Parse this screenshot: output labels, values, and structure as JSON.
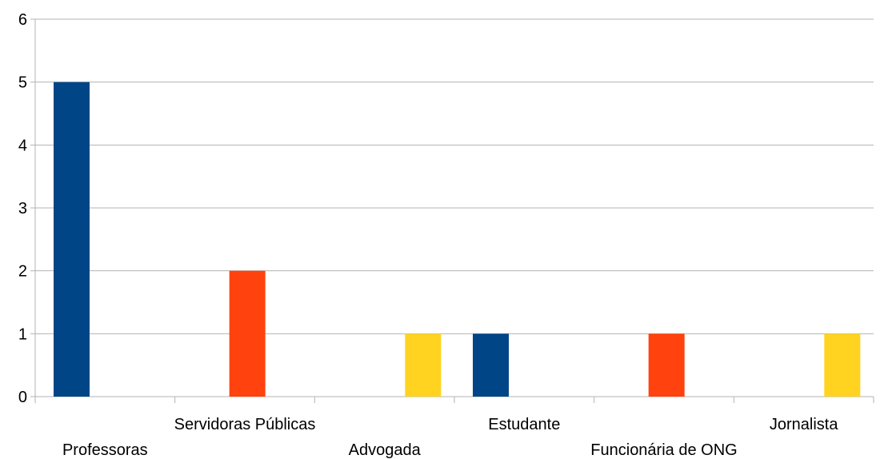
{
  "chart_data": {
    "type": "bar",
    "categories": [
      "Professoras",
      "Servidoras Públicas",
      "Advogada",
      "Estudante",
      "Funcionária de ONG",
      "Jornalista"
    ],
    "values": [
      5,
      2,
      1,
      1,
      1,
      1
    ],
    "colors": [
      "#004586",
      "#ff420e",
      "#ffd320",
      "#004586",
      "#ff420e",
      "#ffd320"
    ],
    "yticks": [
      "0",
      "1",
      "2",
      "3",
      "4",
      "5",
      "6"
    ],
    "ylim": [
      0,
      6
    ],
    "grid": true,
    "title": "",
    "xlabel": "",
    "ylabel": "",
    "legend": "none"
  }
}
